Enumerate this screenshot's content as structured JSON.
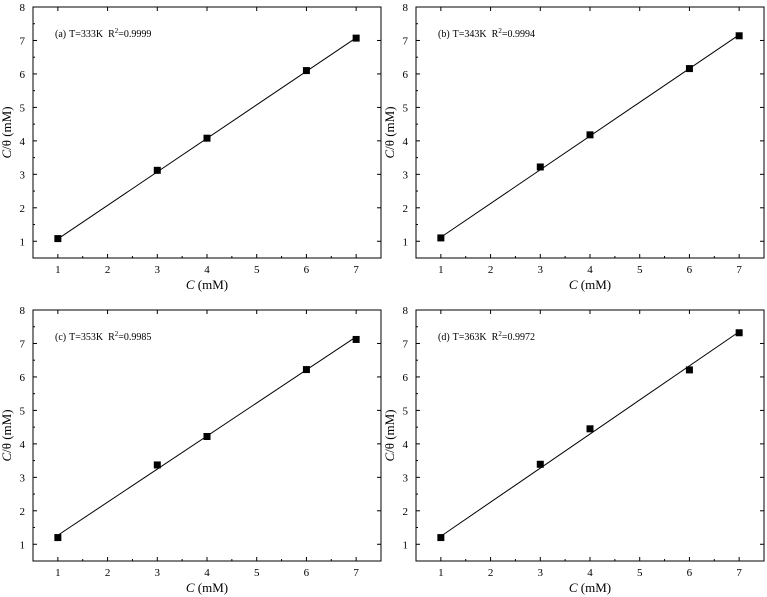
{
  "chart_data": [
    {
      "type": "scatter",
      "label": "(a)",
      "annotation": "T=333K",
      "r2_text": "R",
      "r2_sup": "2",
      "r2_value": "=0.9999",
      "x": [
        1,
        3,
        4,
        6,
        7
      ],
      "y": [
        1.08,
        3.12,
        4.08,
        6.1,
        7.07
      ],
      "fit": {
        "x": [
          1,
          7
        ],
        "y": [
          1.07,
          7.08
        ]
      },
      "xlabel_italic": "C",
      "xlabel_unit": " (mM)",
      "ylabel_italic": "C",
      "ylabel_rest": "/θ (mM)",
      "xlim": [
        0.5,
        7.5
      ],
      "ylim": [
        0.5,
        8
      ],
      "xticks": [
        "1",
        "2",
        "3",
        "4",
        "5",
        "6",
        "7"
      ],
      "yticks": [
        "1",
        "2",
        "3",
        "4",
        "5",
        "6",
        "7",
        "8"
      ],
      "grid": false,
      "marker": "square"
    },
    {
      "type": "scatter",
      "label": "(b)",
      "annotation": "T=343K",
      "r2_text": "R",
      "r2_sup": "2",
      "r2_value": "=0.9994",
      "x": [
        1,
        3,
        4,
        6,
        7
      ],
      "y": [
        1.1,
        3.22,
        4.18,
        6.16,
        7.14
      ],
      "fit": {
        "x": [
          1,
          7
        ],
        "y": [
          1.12,
          7.17
        ]
      },
      "xlabel_italic": "C",
      "xlabel_unit": " (mM)",
      "ylabel_italic": "C",
      "ylabel_rest": "/θ (mM)",
      "xlim": [
        0.5,
        7.5
      ],
      "ylim": [
        0.5,
        8
      ],
      "xticks": [
        "1",
        "2",
        "3",
        "4",
        "5",
        "6",
        "7"
      ],
      "yticks": [
        "1",
        "2",
        "3",
        "4",
        "5",
        "6",
        "7",
        "8"
      ],
      "grid": false,
      "marker": "square"
    },
    {
      "type": "scatter",
      "label": "(c)",
      "annotation": "T=353K",
      "r2_text": "R",
      "r2_sup": "2",
      "r2_value": "=0.9985",
      "x": [
        1,
        3,
        4,
        6,
        7
      ],
      "y": [
        1.2,
        3.37,
        4.22,
        6.22,
        7.12
      ],
      "fit": {
        "x": [
          1,
          7
        ],
        "y": [
          1.27,
          7.2
        ]
      },
      "xlabel_italic": "C",
      "xlabel_unit": " (mM)",
      "ylabel_italic": "C",
      "ylabel_rest": "/θ (mM)",
      "xlim": [
        0.5,
        7.5
      ],
      "ylim": [
        0.5,
        8
      ],
      "xticks": [
        "1",
        "2",
        "3",
        "4",
        "5",
        "6",
        "7"
      ],
      "yticks": [
        "1",
        "2",
        "3",
        "4",
        "5",
        "6",
        "7",
        "8"
      ],
      "grid": false,
      "marker": "square"
    },
    {
      "type": "scatter",
      "label": "(d)",
      "annotation": "T=363K",
      "r2_text": "R",
      "r2_sup": "2",
      "r2_value": "=0.9972",
      "x": [
        1,
        3,
        4,
        6,
        7
      ],
      "y": [
        1.2,
        3.39,
        4.45,
        6.21,
        7.32
      ],
      "fit": {
        "x": [
          1,
          7
        ],
        "y": [
          1.24,
          7.35
        ]
      },
      "xlabel_italic": "C",
      "xlabel_unit": " (mM)",
      "ylabel_italic": "C",
      "ylabel_rest": "/θ (mM)",
      "xlim": [
        0.5,
        7.5
      ],
      "ylim": [
        0.5,
        8
      ],
      "xticks": [
        "1",
        "2",
        "3",
        "4",
        "5",
        "6",
        "7"
      ],
      "yticks": [
        "1",
        "2",
        "3",
        "4",
        "5",
        "6",
        "7",
        "8"
      ],
      "grid": false,
      "marker": "square"
    }
  ]
}
